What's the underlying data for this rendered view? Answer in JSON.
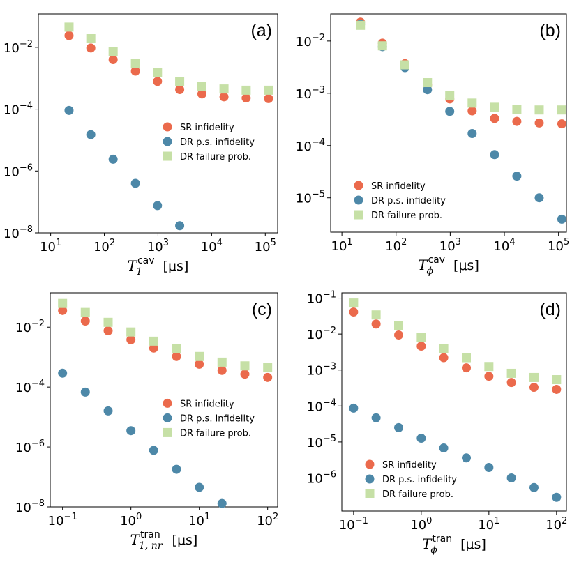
{
  "chart_data": [
    {
      "type": "scatter",
      "panel_label": "(a)",
      "x_label": {
        "text": "T",
        "sub": "1",
        "sup": "cav",
        "unit": "[μs]"
      },
      "xscale": "log",
      "yscale": "log",
      "xlim": [
        5.9,
        170000
      ],
      "ylim": [
        1e-08,
        0.12
      ],
      "xticks": [
        {
          "value": 10,
          "label": "10",
          "sup": "1"
        },
        {
          "value": 100,
          "label": "10",
          "sup": "2"
        },
        {
          "value": 1000,
          "label": "10",
          "sup": "3"
        },
        {
          "value": 10000,
          "label": "10",
          "sup": "4"
        },
        {
          "value": 100000,
          "label": "10",
          "sup": "5"
        }
      ],
      "yticks": [
        {
          "value": 1e-08,
          "label": "10",
          "sup": "−8"
        },
        {
          "value": 1e-06,
          "label": "10",
          "sup": "−6"
        },
        {
          "value": 0.0001,
          "label": "10",
          "sup": "−4"
        },
        {
          "value": 0.01,
          "label": "10",
          "sup": "−2"
        }
      ],
      "legend": "center right",
      "x": [
        22,
        56,
        146,
        380,
        980,
        2540,
        6600,
        17000,
        44000,
        115000
      ],
      "series": [
        {
          "name": "SR infidelity",
          "color": "#eb6a4c",
          "marker": "circle",
          "values": [
            0.024,
            0.0095,
            0.004,
            0.0017,
            0.00079,
            0.00043,
            0.00031,
            0.00025,
            0.00023,
            0.00022
          ]
        },
        {
          "name": "DR p.s. infidelity",
          "color": "#4d88a8",
          "marker": "circle",
          "values": [
            9.1e-05,
            1.5e-05,
            2.4e-06,
            4e-07,
            7.6e-08,
            1.7e-08,
            null,
            null,
            null,
            null
          ]
        },
        {
          "name": "DR failure prob.",
          "color": "#c6e0a6",
          "marker": "square",
          "values": [
            0.045,
            0.019,
            0.0074,
            0.003,
            0.0015,
            0.00079,
            0.00055,
            0.00045,
            0.00041,
            0.00041
          ]
        }
      ]
    },
    {
      "type": "scatter",
      "panel_label": "(b)",
      "x_label": {
        "text": "T",
        "sub": "ϕ",
        "sup": "cav",
        "unit": "[μs]"
      },
      "xscale": "log",
      "yscale": "log",
      "xlim": [
        6.2,
        140000
      ],
      "ylim": [
        2.2e-06,
        0.033
      ],
      "xticks": [
        {
          "value": 10,
          "label": "10",
          "sup": "1"
        },
        {
          "value": 100,
          "label": "10",
          "sup": "2"
        },
        {
          "value": 1000,
          "label": "10",
          "sup": "3"
        },
        {
          "value": 10000,
          "label": "10",
          "sup": "4"
        },
        {
          "value": 100000,
          "label": "10",
          "sup": "5"
        }
      ],
      "yticks": [
        {
          "value": 1e-05,
          "label": "10",
          "sup": "−5"
        },
        {
          "value": 0.0001,
          "label": "10",
          "sup": "−4"
        },
        {
          "value": 0.001,
          "label": "10",
          "sup": "−3"
        },
        {
          "value": 0.01,
          "label": "10",
          "sup": "−2"
        }
      ],
      "legend": "lower left",
      "x": [
        22,
        56,
        146,
        380,
        980,
        2540,
        6600,
        17000,
        44000,
        115000
      ],
      "series": [
        {
          "name": "SR infidelity",
          "color": "#eb6a4c",
          "marker": "circle",
          "values": [
            0.023,
            0.0091,
            0.0037,
            0.00145,
            0.00078,
            0.00046,
            0.00033,
            0.00029,
            0.00027,
            0.00026
          ]
        },
        {
          "name": "DR p.s. infidelity",
          "color": "#4d88a8",
          "marker": "circle",
          "values": [
            0.021,
            0.0078,
            0.0031,
            0.00117,
            0.00045,
            0.00017,
            6.7e-05,
            2.6e-05,
            1e-05,
            3.9e-06
          ]
        },
        {
          "name": "DR failure prob.",
          "color": "#c6e0a6",
          "marker": "square",
          "values": [
            0.02,
            0.0081,
            0.0035,
            0.0016,
            0.00091,
            0.00065,
            0.00054,
            0.00049,
            0.00048,
            0.00048
          ]
        }
      ]
    },
    {
      "type": "scatter",
      "panel_label": "(c)",
      "x_label": {
        "text": "T",
        "sub": "1, nr",
        "sup": "tran",
        "unit": "[μs]"
      },
      "xscale": "log",
      "yscale": "log",
      "xlim": [
        0.066,
        140
      ],
      "ylim": [
        1e-08,
        0.14
      ],
      "xticks": [
        {
          "value": 0.1,
          "label": "10",
          "sup": "−1"
        },
        {
          "value": 1,
          "label": "10",
          "sup": "0"
        },
        {
          "value": 10,
          "label": "10",
          "sup": "1"
        },
        {
          "value": 100,
          "label": "10",
          "sup": "2"
        }
      ],
      "yticks": [
        {
          "value": 1e-08,
          "label": "10",
          "sup": "−8"
        },
        {
          "value": 1e-06,
          "label": "10",
          "sup": "−6"
        },
        {
          "value": 0.0001,
          "label": "10",
          "sup": "−4"
        },
        {
          "value": 0.01,
          "label": "10",
          "sup": "−2"
        }
      ],
      "legend": "center right",
      "x": [
        0.1,
        0.215,
        0.464,
        1,
        2.15,
        4.64,
        10,
        21.5,
        46.4,
        100
      ],
      "series": [
        {
          "name": "SR infidelity",
          "color": "#eb6a4c",
          "marker": "circle",
          "values": [
            0.036,
            0.016,
            0.0076,
            0.0038,
            0.002,
            0.00105,
            0.00058,
            0.00036,
            0.00027,
            0.00021
          ]
        },
        {
          "name": "DR p.s. infidelity",
          "color": "#4d88a8",
          "marker": "circle",
          "values": [
            0.00029,
            6.8e-05,
            1.6e-05,
            3.5e-06,
            7.7e-07,
            1.8e-07,
            4.5e-08,
            1.3e-08,
            null,
            null
          ]
        },
        {
          "name": "DR failure prob.",
          "color": "#c6e0a6",
          "marker": "square",
          "values": [
            0.062,
            0.031,
            0.0145,
            0.0069,
            0.0034,
            0.0019,
            0.00105,
            0.00068,
            0.00051,
            0.00044
          ]
        }
      ]
    },
    {
      "type": "scatter",
      "panel_label": "(d)",
      "x_label": {
        "text": "T",
        "sub": "ϕ",
        "sup": "tran",
        "unit": "[μs]"
      },
      "xscale": "log",
      "yscale": "log",
      "xlim": [
        0.067,
        140
      ],
      "ylim": [
        1.2e-07,
        0.14
      ],
      "xticks": [
        {
          "value": 0.1,
          "label": "10",
          "sup": "−1"
        },
        {
          "value": 1,
          "label": "10",
          "sup": "0"
        },
        {
          "value": 10,
          "label": "10",
          "sup": "1"
        },
        {
          "value": 100,
          "label": "10",
          "sup": "2"
        }
      ],
      "yticks": [
        {
          "value": 1e-06,
          "label": "10",
          "sup": "−6"
        },
        {
          "value": 1e-05,
          "label": "10",
          "sup": "−5"
        },
        {
          "value": 0.0001,
          "label": "10",
          "sup": "−4"
        },
        {
          "value": 0.001,
          "label": "10",
          "sup": "−3"
        },
        {
          "value": 0.01,
          "label": "10",
          "sup": "−2"
        },
        {
          "value": 0.1,
          "label": "10",
          "sup": "−1"
        }
      ],
      "legend": "lower left",
      "x": [
        0.1,
        0.215,
        0.464,
        1,
        2.15,
        4.64,
        10,
        21.5,
        46.4,
        100
      ],
      "series": [
        {
          "name": "SR infidelity",
          "color": "#eb6a4c",
          "marker": "circle",
          "values": [
            0.041,
            0.019,
            0.0094,
            0.0046,
            0.0022,
            0.00115,
            0.00067,
            0.00045,
            0.00033,
            0.00029
          ]
        },
        {
          "name": "DR p.s. infidelity",
          "color": "#4d88a8",
          "marker": "circle",
          "values": [
            8.7e-05,
            4.7e-05,
            2.5e-05,
            1.27e-05,
            6.8e-06,
            3.6e-06,
            1.95e-06,
            1e-06,
            5.4e-07,
            2.9e-07
          ]
        },
        {
          "name": "DR failure prob.",
          "color": "#c6e0a6",
          "marker": "square",
          "values": [
            0.073,
            0.034,
            0.017,
            0.0079,
            0.004,
            0.0022,
            0.00125,
            0.00081,
            0.00062,
            0.00054
          ]
        }
      ]
    }
  ]
}
